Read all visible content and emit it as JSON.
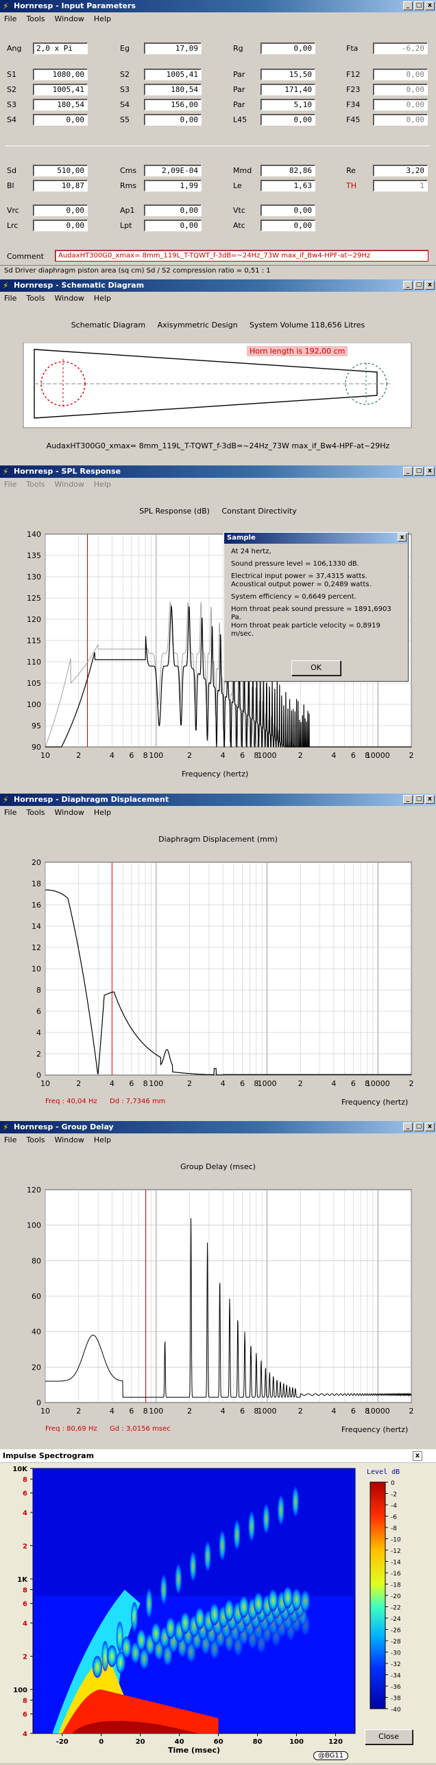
{
  "input": {
    "title": "Hornresp - Input Parameters",
    "menu": [
      "File",
      "Tools",
      "Window",
      "Help"
    ],
    "rows1": [
      [
        "Ang",
        "2,0 x Pi",
        "Eg",
        "17,09",
        "Rg",
        "0,00",
        "Fta",
        "-6,20"
      ],
      [
        "S1",
        "1080,00",
        "S2",
        "1005,41",
        "Par",
        "15,50",
        "F12",
        "0,00"
      ],
      [
        "S2",
        "1005,41",
        "S3",
        "180,54",
        "Par",
        "171,40",
        "F23",
        "0,00"
      ],
      [
        "S3",
        "180,54",
        "S4",
        "156,00",
        "Par",
        "5,10",
        "F34",
        "0,00"
      ],
      [
        "S4",
        "0,00",
        "S5",
        "0,00",
        "L45",
        "0,00",
        "F45",
        "0,00"
      ]
    ],
    "rows2": [
      [
        "Sd",
        "510,00",
        "Cms",
        "2,09E-04",
        "Mmd",
        "82,86",
        "Re",
        "3,20"
      ],
      [
        "Bl",
        "10,87",
        "Rms",
        "1,99",
        "Le",
        "1,63",
        "TH",
        "1"
      ]
    ],
    "rows3": [
      [
        "Vrc",
        "0,00",
        "Ap1",
        "0,00",
        "Vtc",
        "0,00"
      ],
      [
        "Lrc",
        "0,00",
        "Lpt",
        "0,00",
        "Atc",
        "0,00"
      ]
    ],
    "comment_label": "Comment",
    "comment": "AudaxHT300G0_xmax= 8mm_119L_T-TQWT_f-3dB=~24Hz_73W max_if_Bw4-HPF-at~29Hz",
    "status": "Sd   Driver diaphragm piston area  (sq cm)   Sd / S2 compression ratio = 0,51 : 1"
  },
  "schematic": {
    "title": "Hornresp - Schematic Diagram",
    "menu": [
      "File",
      "Tools",
      "Window",
      "Help"
    ],
    "heading": "Schematic Diagram     Axisymmetric Design     System Volume 118,656 Litres",
    "horn_length": "Horn length is 192,00 cm",
    "caption": "AudaxHT300G0_xmax= 8mm_119L_T-TQWT_f-3dB=~24Hz_73W max_if_Bw4-HPF-at~29Hz"
  },
  "spl": {
    "title": "Hornresp - SPL Response",
    "menu": [
      "File",
      "Tools",
      "Window",
      "Help"
    ],
    "heading": "SPL Response (dB)     Constant Directivity",
    "xlabel": "Frequency (hertz)",
    "xticks": [
      "10",
      "2",
      "4",
      "6",
      "8",
      "100",
      "2",
      "4",
      "6",
      "8",
      "1000",
      "2",
      "4",
      "6",
      "8",
      "10000",
      "2"
    ],
    "yticks": [
      "140",
      "135",
      "130",
      "125",
      "120",
      "115",
      "110",
      "105",
      "100",
      "95",
      "90"
    ],
    "dialog": {
      "title": "Sample",
      "lines": [
        "At 24 hertz,",
        "",
        "Sound pressure level = 106,1330 dB.",
        "",
        "Electrical input power = 37,4315 watts.",
        "Acoustical output power = 0,2489 watts.",
        "",
        "System efficiency = 0,6649 percent.",
        "",
        "Horn throat peak sound pressure = 1891,6903 Pa.",
        "Horn throat peak particle velocity = 0,8919 m/sec."
      ],
      "ok": "OK"
    }
  },
  "disp": {
    "title": "Hornresp - Diaphragm Displacement",
    "menu": [
      "File",
      "Tools",
      "Window",
      "Help"
    ],
    "heading": "Diaphragm Displacement (mm)",
    "xlabel": "Frequency (hertz)",
    "yticks": [
      "20",
      "18",
      "16",
      "14",
      "12",
      "10",
      "8",
      "6",
      "4",
      "2",
      "0"
    ],
    "freq": "Freq : 40,04 Hz",
    "val": "Dd : 7,7346 mm"
  },
  "gd": {
    "title": "Hornresp - Group Delay",
    "menu": [
      "File",
      "Tools",
      "Window",
      "Help"
    ],
    "heading": "Group Delay (msec)",
    "xlabel": "Frequency (hertz)",
    "yticks": [
      "120",
      "100",
      "80",
      "60",
      "40",
      "20",
      "0"
    ],
    "freq": "Freq : 80,69 Hz",
    "val": "Gd : 3,0156 msec"
  },
  "spec": {
    "title": "Impulse Spectrogram",
    "yticks": [
      "10K",
      "8",
      "6",
      "4",
      "2",
      "1K",
      "8",
      "6",
      "4",
      "2",
      "100",
      "8",
      "6",
      "4"
    ],
    "xticks": [
      "-20",
      "0",
      "20",
      "40",
      "60",
      "80",
      "100",
      "120"
    ],
    "xlabel": "Time (msec)",
    "legend_title": "Level  dB",
    "legend": [
      "0",
      "-2",
      "-4",
      "-6",
      "-8",
      "-10",
      "-12",
      "-14",
      "-16",
      "-18",
      "-20",
      "-22",
      "-24",
      "-26",
      "-28",
      "-30",
      "-32",
      "-34",
      "-36",
      "-38",
      "-40"
    ],
    "close": "Close",
    "watermark": "@BG11"
  },
  "colors": {
    "titlebar": "#0a246a",
    "accent": "#c00000"
  }
}
